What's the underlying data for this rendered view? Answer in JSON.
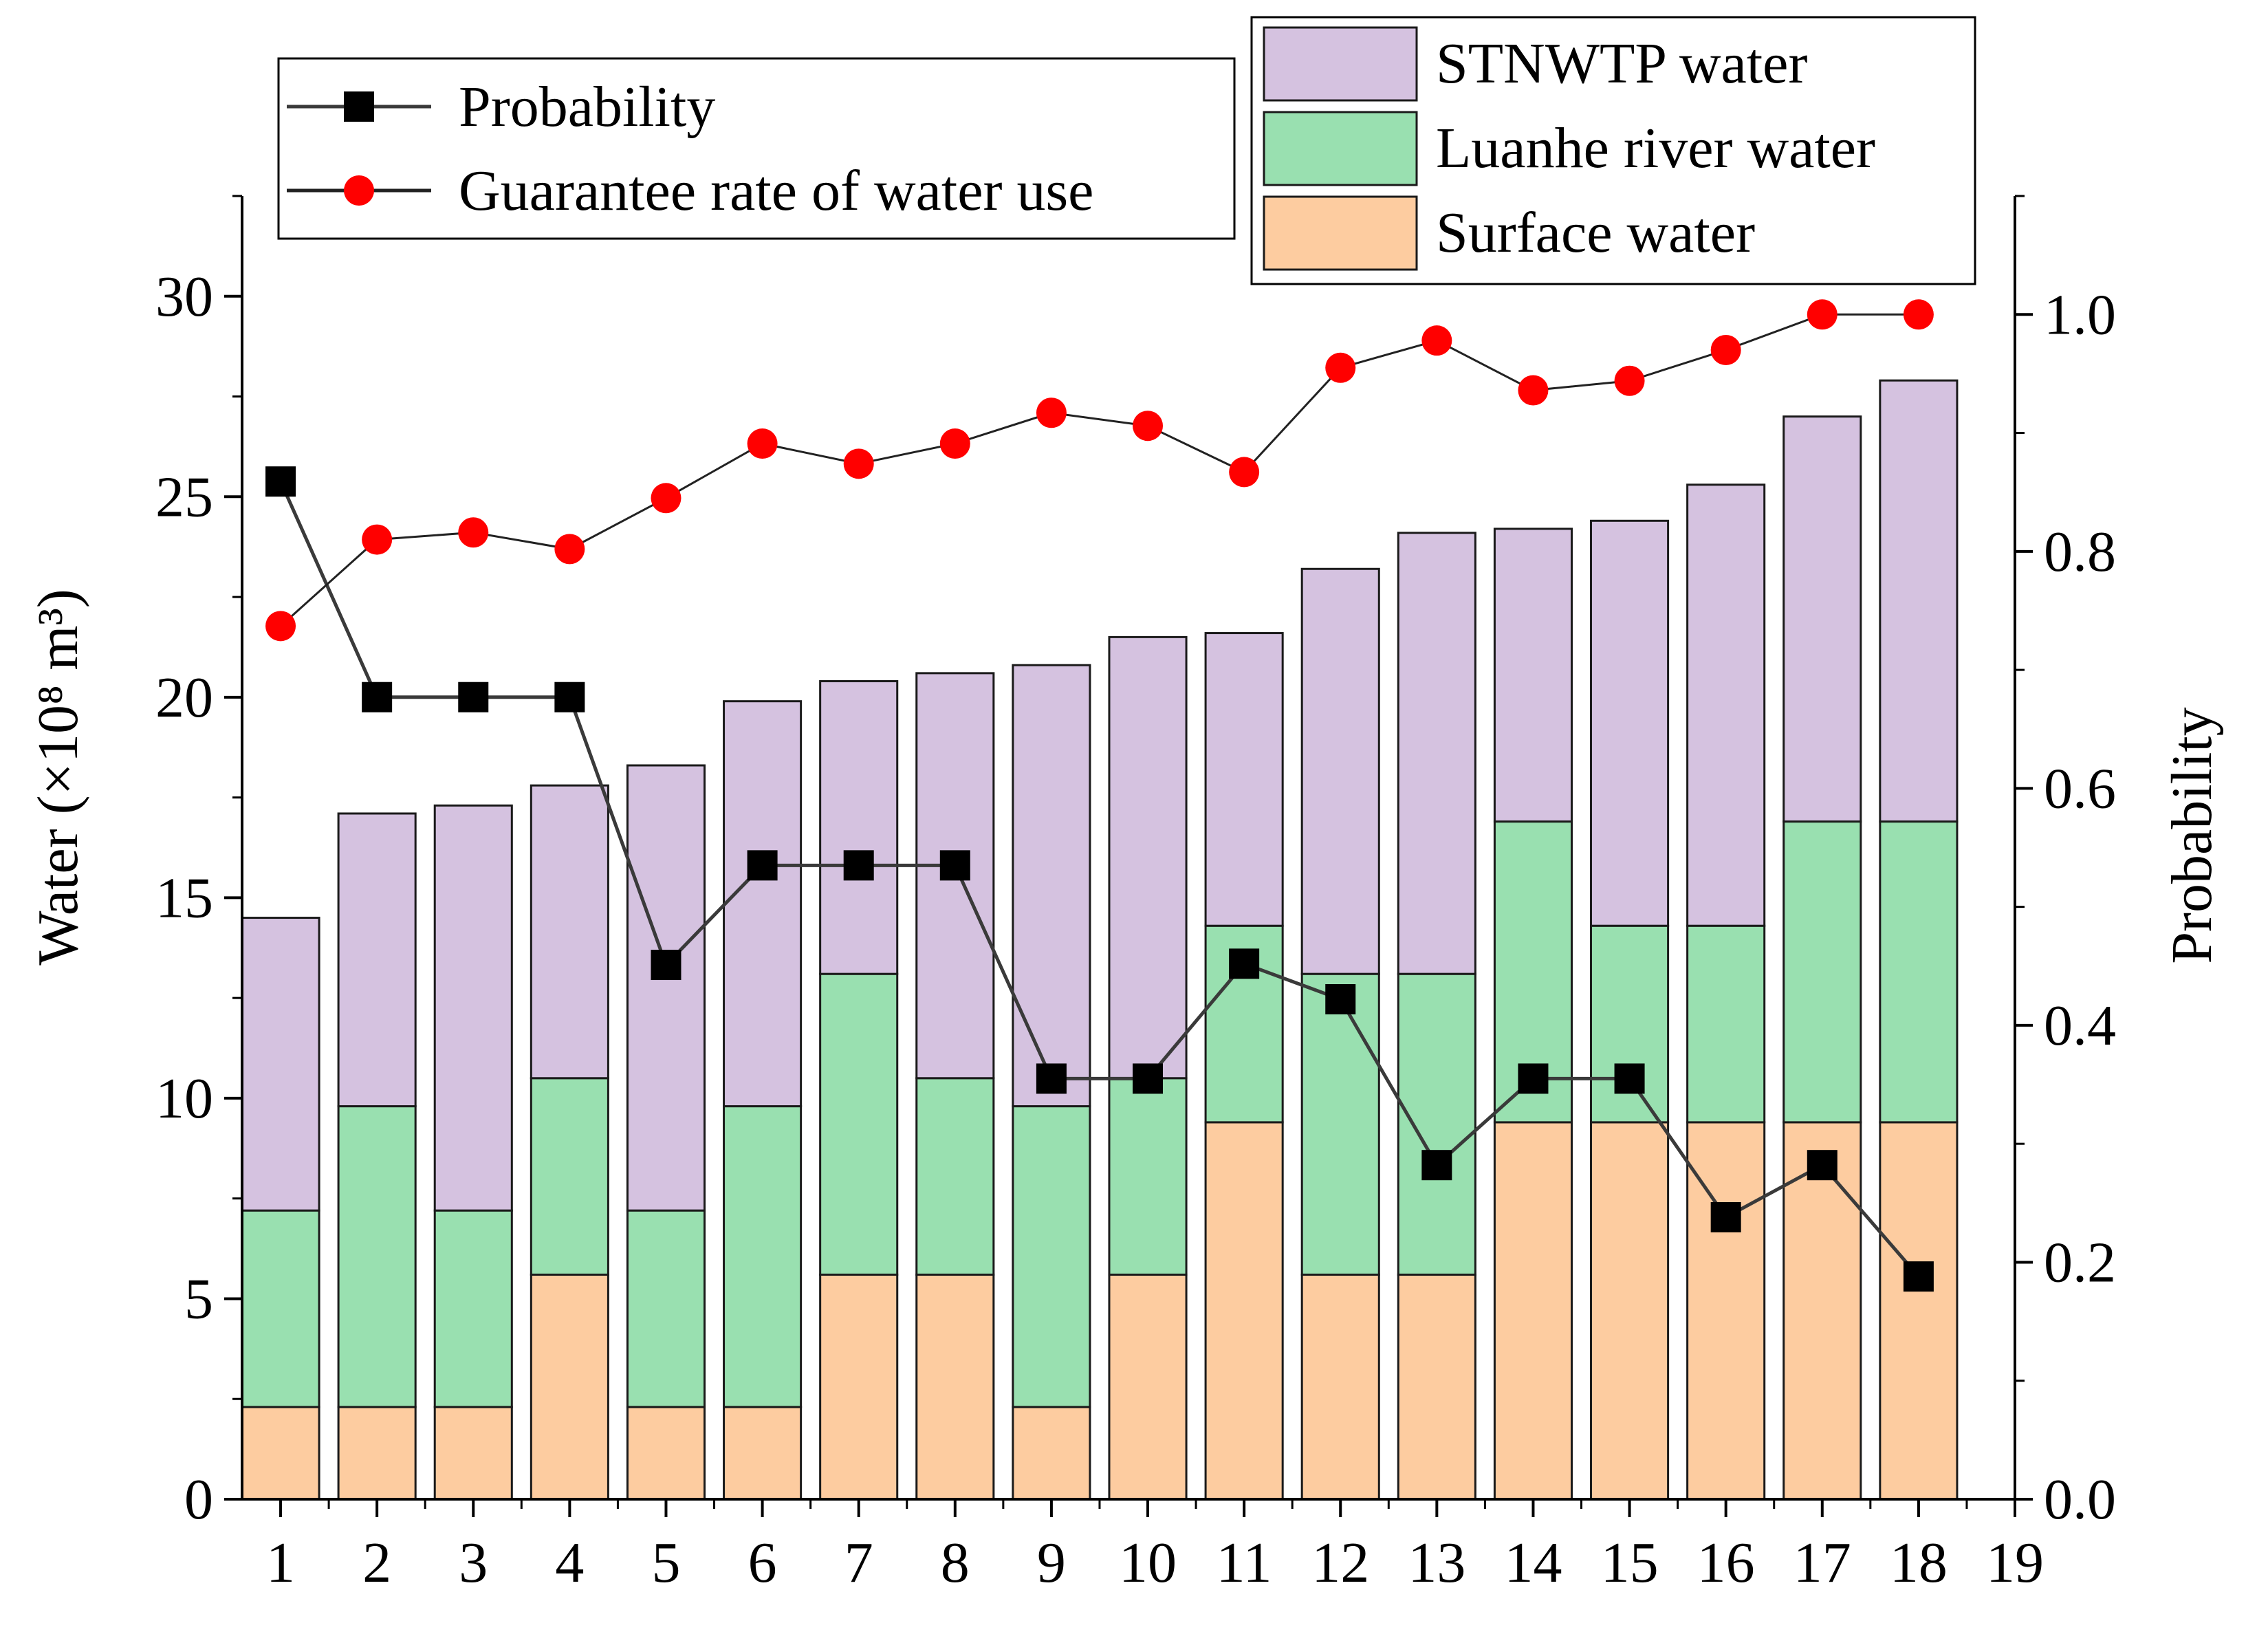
{
  "chart_data": {
    "type": "bar",
    "stacked": true,
    "categories": [
      "1",
      "2",
      "3",
      "4",
      "5",
      "6",
      "7",
      "8",
      "9",
      "10",
      "11",
      "12",
      "13",
      "14",
      "15",
      "16",
      "17",
      "18"
    ],
    "x_tick_labels": [
      "1",
      "2",
      "3",
      "4",
      "5",
      "6",
      "7",
      "8",
      "9",
      "10",
      "11",
      "12",
      "13",
      "14",
      "15",
      "16",
      "17",
      "18",
      "19"
    ],
    "xlim": [
      0.6,
      19.0
    ],
    "series": [
      {
        "name": "Surface water",
        "color": "#FDCCA0",
        "values": [
          2.3,
          2.3,
          2.3,
          5.6,
          2.3,
          2.3,
          5.6,
          5.6,
          2.3,
          5.6,
          9.4,
          5.6,
          5.6,
          9.4,
          9.4,
          9.4,
          9.4,
          9.4
        ]
      },
      {
        "name": "Luanhe river water",
        "color": "#99E0B0",
        "values": [
          4.9,
          7.5,
          4.9,
          4.9,
          4.9,
          7.5,
          7.5,
          4.9,
          7.5,
          4.9,
          4.9,
          7.5,
          7.5,
          7.5,
          4.9,
          4.9,
          7.5,
          7.5
        ]
      },
      {
        "name": "STNWTP water",
        "color": "#D5C2E0",
        "values": [
          7.3,
          7.3,
          10.1,
          7.3,
          11.1,
          10.1,
          7.3,
          10.1,
          11.0,
          11.0,
          7.3,
          10.1,
          11.0,
          7.3,
          10.1,
          11.0,
          10.1,
          11.0
        ]
      }
    ],
    "line_series": [
      {
        "name": "Probability",
        "axis": "right",
        "marker": "square",
        "color": "#000000",
        "values": [
          0.859,
          0.677,
          0.677,
          0.677,
          0.451,
          0.535,
          0.535,
          0.535,
          0.355,
          0.355,
          0.452,
          0.422,
          0.282,
          0.355,
          0.355,
          0.238,
          0.282,
          0.188
        ]
      },
      {
        "name": "Guarantee rate of water use",
        "axis": "right",
        "marker": "circle",
        "color": "#FF0000",
        "values": [
          0.737,
          0.81,
          0.816,
          0.802,
          0.845,
          0.891,
          0.874,
          0.891,
          0.917,
          0.906,
          0.867,
          0.955,
          0.978,
          0.936,
          0.944,
          0.97,
          1.0,
          1.0
        ]
      }
    ],
    "ylabel": "Water (×10⁸ m³)",
    "ylim": [
      0,
      32.5
    ],
    "y_ticks": [
      0,
      5,
      10,
      15,
      20,
      25,
      30
    ],
    "y_tick_labels": [
      "0",
      "5",
      "10",
      "15",
      "20",
      "25",
      "30"
    ],
    "y2label": "Probability",
    "y2lim": [
      0,
      1.1
    ],
    "y2_ticks": [
      0.0,
      0.2,
      0.4,
      0.6,
      0.8,
      1.0
    ],
    "y2_tick_labels": [
      "0.0",
      "0.2",
      "0.4",
      "0.6",
      "0.8",
      "1.0"
    ],
    "legend_lines": {
      "placement": "top-center",
      "entries": [
        "Probability",
        "Guarantee rate of water use"
      ]
    },
    "legend_bars": {
      "placement": "top-right",
      "entries": [
        "STNWTP water",
        "Luanhe river water",
        "Surface water"
      ]
    },
    "grid": false
  }
}
